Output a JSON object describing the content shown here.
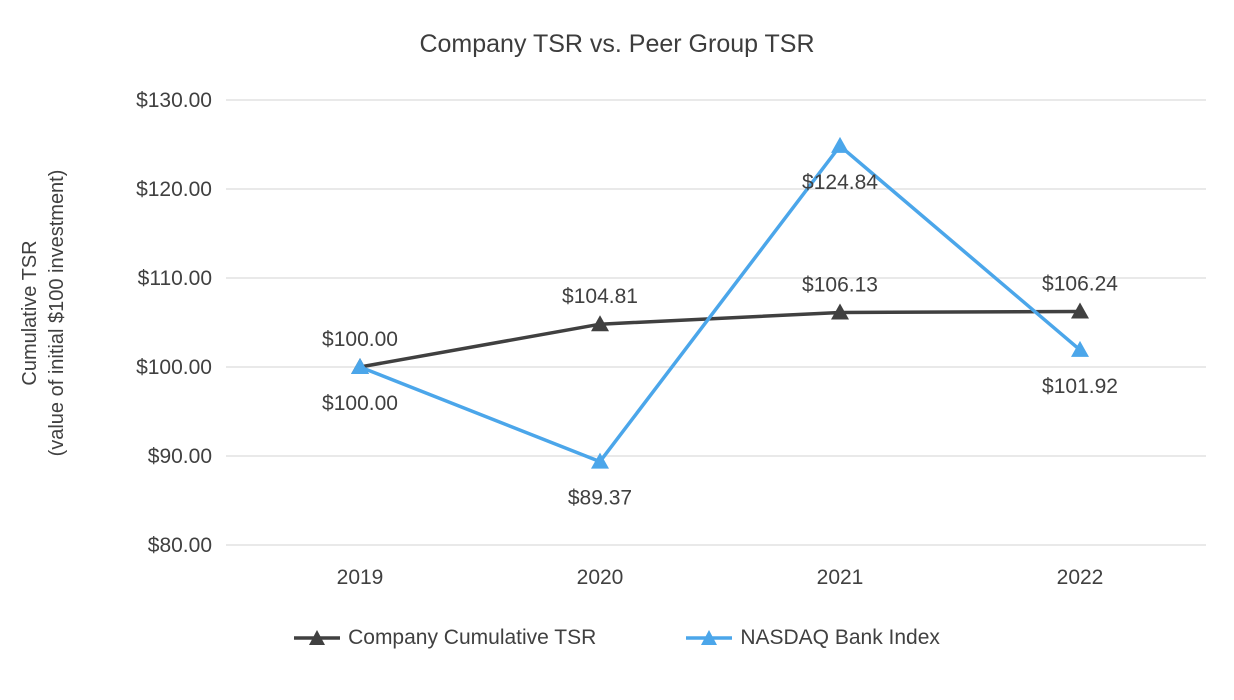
{
  "colors": {
    "text": "#404040",
    "grid": "#e2e2e2",
    "background": "#ffffff"
  },
  "y_axis": {
    "line1": "Cumulative TSR",
    "line2": "(value of initial $100 investment)"
  },
  "chart_data": {
    "type": "line",
    "title": "Company TSR vs. Peer Group TSR",
    "xlabel": "",
    "ylabel": "Cumulative TSR (value of initial $100 investment)",
    "categories": [
      "2019",
      "2020",
      "2021",
      "2022"
    ],
    "series": [
      {
        "name": "Company Cumulative TSR",
        "color": "#404040",
        "marker": "triangle",
        "label_position": "above",
        "values": [
          100.0,
          104.81,
          106.13,
          106.24
        ],
        "data_labels": [
          "$100.00",
          "$104.81",
          "$106.13",
          "$106.24"
        ]
      },
      {
        "name": "NASDAQ Bank Index",
        "color": "#4ba6ea",
        "marker": "triangle",
        "label_position": "below",
        "values": [
          100.0,
          89.37,
          124.84,
          101.92
        ],
        "data_labels": [
          "$100.00",
          "$89.37",
          "$124.84",
          "$101.92"
        ]
      }
    ],
    "ylim": [
      80,
      130
    ],
    "yticks": [
      {
        "value": 80,
        "label": "$80.00"
      },
      {
        "value": 90,
        "label": "$90.00"
      },
      {
        "value": 100,
        "label": "$100.00"
      },
      {
        "value": 110,
        "label": "$110.00"
      },
      {
        "value": 120,
        "label": "$120.00"
      },
      {
        "value": 130,
        "label": "$130.00"
      }
    ],
    "grid": true,
    "legend_position": "bottom"
  }
}
